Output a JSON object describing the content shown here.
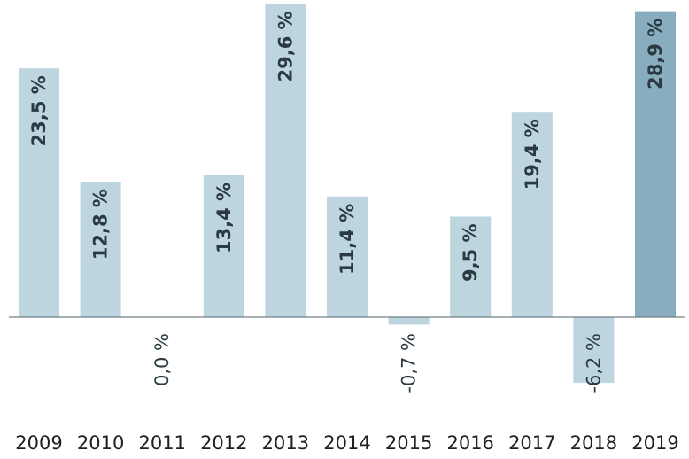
{
  "chart_data": {
    "type": "bar",
    "categories": [
      "2009",
      "2010",
      "2011",
      "2012",
      "2013",
      "2014",
      "2015",
      "2016",
      "2017",
      "2018",
      "2019"
    ],
    "values": [
      23.5,
      12.8,
      0.0,
      13.4,
      29.6,
      11.4,
      -0.7,
      9.5,
      19.4,
      -6.2,
      28.9
    ],
    "data_labels": [
      "23,5 %",
      "12,8 %",
      "0,0 %",
      "13,4 %",
      "29,6 %",
      "11,4 %",
      "-0,7 %",
      "9,5 %",
      "19,4 %",
      "-6,2 %",
      "28,9 %"
    ],
    "highlight_index": 10,
    "ylim": [
      -10,
      30
    ],
    "grid": false,
    "colors": {
      "bar": "#bdd5de",
      "highlight": "#87adbf",
      "axis": "#6f7f88"
    }
  }
}
